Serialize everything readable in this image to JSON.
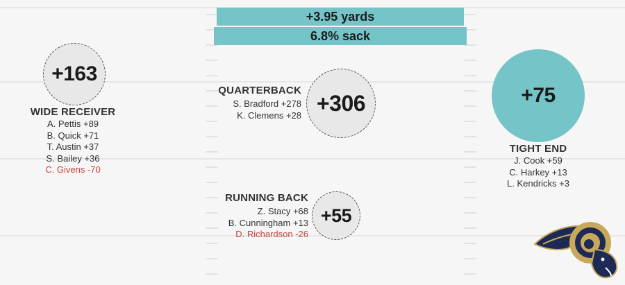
{
  "stats": {
    "yards": "+3.95 yards",
    "sack": "6.8% sack"
  },
  "wide_receiver": {
    "total": "+163",
    "title": "WIDE RECEIVER",
    "players": [
      {
        "text": "A. Pettis +89",
        "negative": false
      },
      {
        "text": "B. Quick +71",
        "negative": false
      },
      {
        "text": "T. Austin +37",
        "negative": false
      },
      {
        "text": "S. Bailey +36",
        "negative": false
      },
      {
        "text": "C. Givens -70",
        "negative": true
      }
    ]
  },
  "quarterback": {
    "total": "+306",
    "title": "QUARTERBACK",
    "players": [
      {
        "text": "S. Bradford +278",
        "negative": false
      },
      {
        "text": "K. Clemens +28",
        "negative": false
      }
    ]
  },
  "running_back": {
    "total": "+55",
    "title": "RUNNING BACK",
    "players": [
      {
        "text": "Z. Stacy +68",
        "negative": false
      },
      {
        "text": "B. Cunningham +13",
        "negative": false
      },
      {
        "text": "D. Richardson -26",
        "negative": true
      }
    ]
  },
  "tight_end": {
    "total": "+75",
    "title": "TIGHT END",
    "players": [
      {
        "text": "J. Cook +59",
        "negative": false
      },
      {
        "text": "C. Harkey +13",
        "negative": false
      },
      {
        "text": "L. Kendricks +3",
        "negative": false
      }
    ]
  },
  "colors": {
    "accent": "#74c4c8",
    "negative": "#c9403a",
    "logo_navy": "#1d2a56",
    "logo_gold": "#c8a95a"
  },
  "logo": {
    "icon": "rams-logo-icon"
  }
}
